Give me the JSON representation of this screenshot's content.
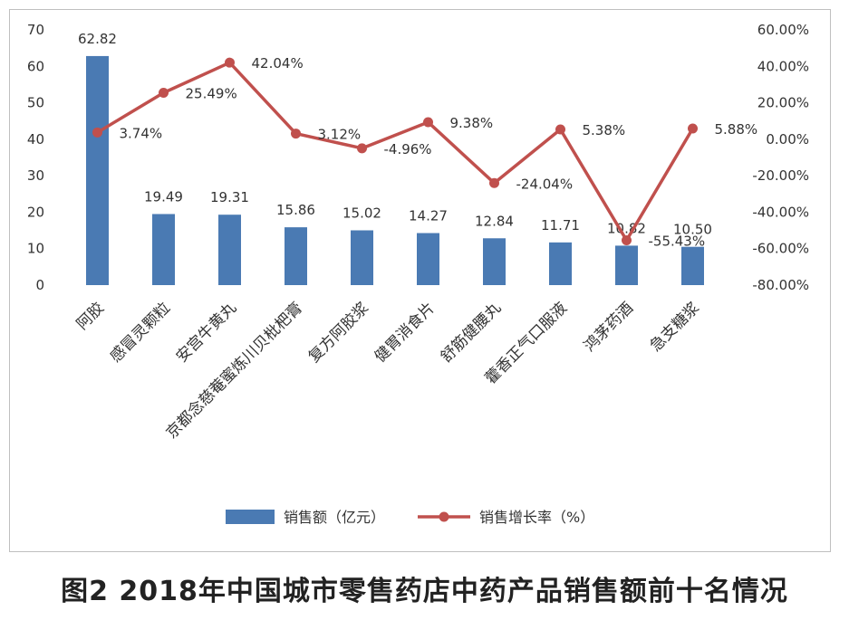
{
  "caption": "图2 2018年中国城市零售药店中药产品销售额前十名情况",
  "chart_data": {
    "type": "bar+line",
    "categories": [
      "阿胶",
      "感冒灵颗粒",
      "安宫牛黄丸",
      "京都念慈菴蜜炼川贝枇杷膏",
      "复方阿胶浆",
      "健胃消食片",
      "舒筋健腰丸",
      "藿香正气口服液",
      "鸿茅药酒",
      "急支糖浆"
    ],
    "series": [
      {
        "name": "销售额（亿元）",
        "type": "bar",
        "axis": "left",
        "values": [
          62.82,
          19.49,
          19.31,
          15.86,
          15.02,
          14.27,
          12.84,
          11.71,
          10.82,
          10.5
        ],
        "labels": [
          "62.82",
          "19.49",
          "19.31",
          "15.86",
          "15.02",
          "14.27",
          "12.84",
          "11.71",
          "10.82",
          "10.50"
        ],
        "color": "#4a7ab3"
      },
      {
        "name": "销售增长率（%）",
        "type": "line",
        "axis": "right",
        "values": [
          3.74,
          25.49,
          42.04,
          3.12,
          -4.96,
          9.38,
          -24.04,
          5.38,
          -55.43,
          5.88
        ],
        "labels": [
          "3.74%",
          "25.49%",
          "42.04%",
          "3.12%",
          "-4.96%",
          "9.38%",
          "-24.04%",
          "5.38%",
          "-55.43%",
          "5.88%"
        ],
        "color": "#c0504d"
      }
    ],
    "y_left": {
      "min": 0,
      "max": 70,
      "ticks": [
        "0",
        "10",
        "20",
        "30",
        "40",
        "50",
        "60",
        "70"
      ]
    },
    "y_right": {
      "min": -80,
      "max": 60,
      "ticks": [
        "-80.00%",
        "-60.00%",
        "-40.00%",
        "-20.00%",
        "0.00%",
        "20.00%",
        "40.00%",
        "60.00%"
      ]
    },
    "grid": false,
    "legend_position": "bottom"
  }
}
